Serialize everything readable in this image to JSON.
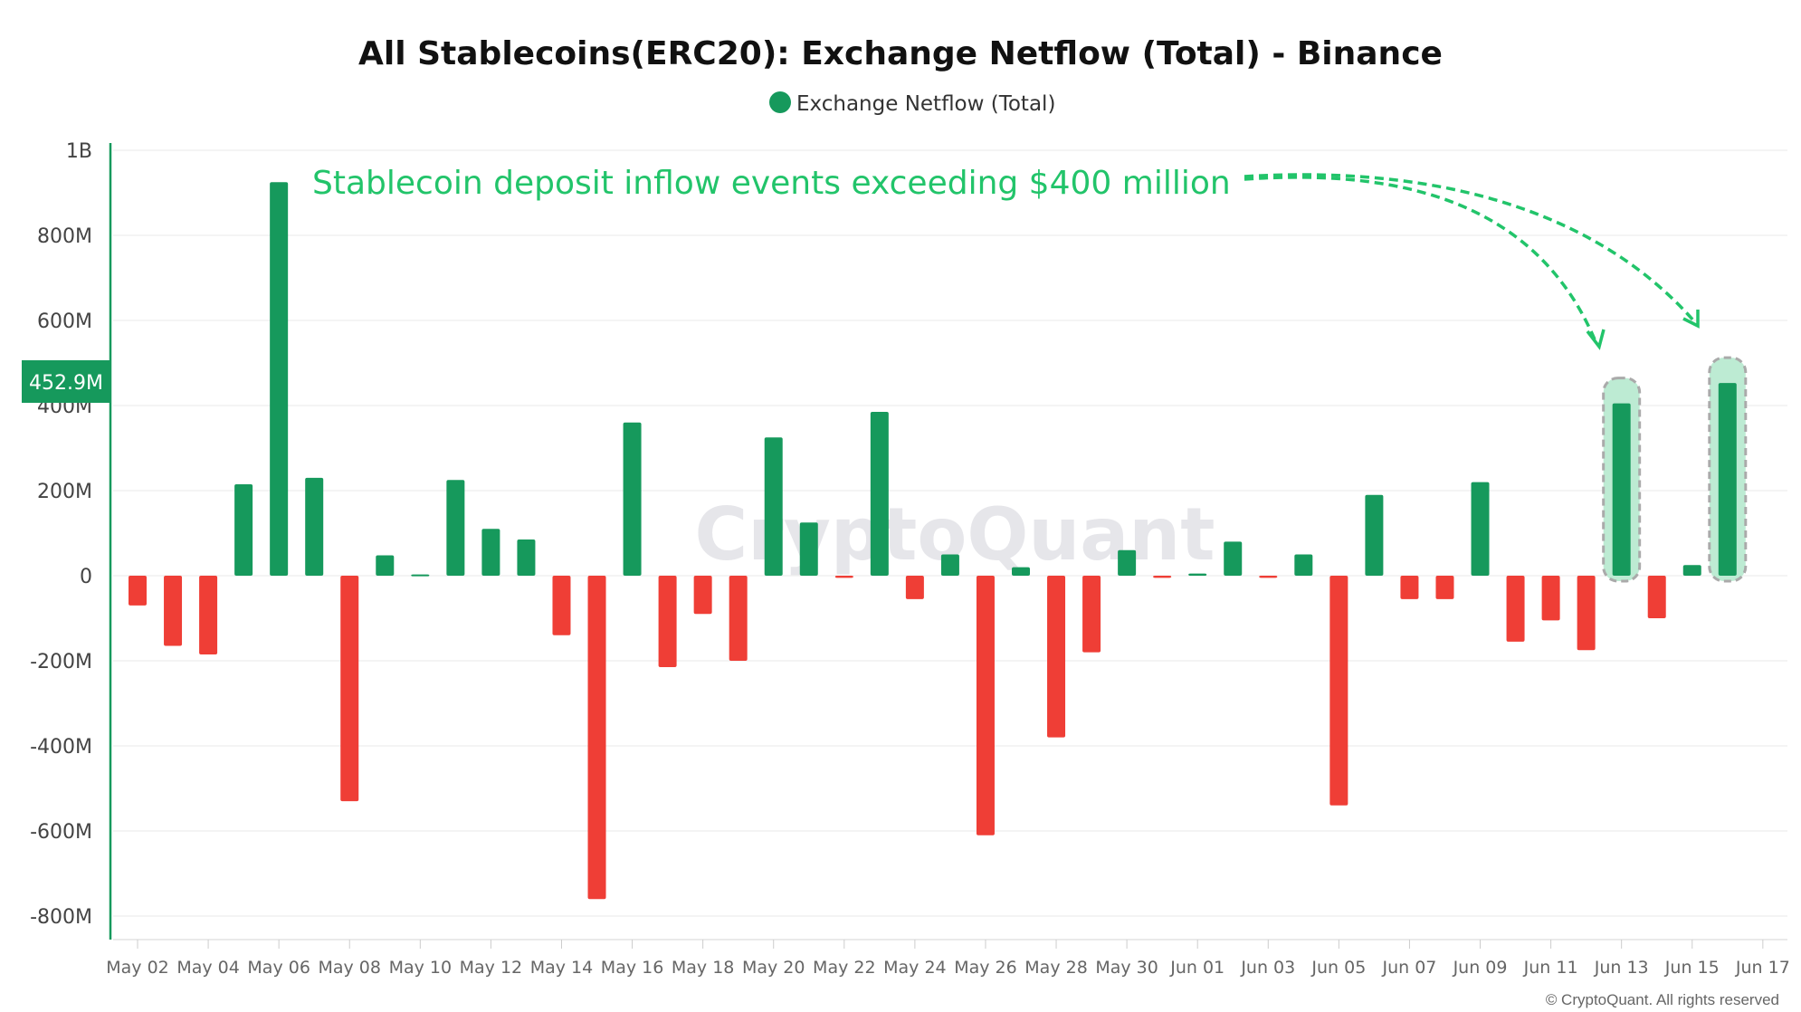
{
  "chart_data": {
    "type": "bar",
    "title": "All Stablecoins(ERC20): Exchange Netflow (Total) - Binance",
    "legend": [
      {
        "label": "Exchange Netflow (Total)",
        "color": "#16995c"
      }
    ],
    "legend_position": "top-center",
    "ylabel": "",
    "xlabel": "",
    "ylim": [
      -800,
      1000
    ],
    "y_unit": "M USD",
    "y_ticks": [
      {
        "v": 1000,
        "label": "1B"
      },
      {
        "v": 800,
        "label": "800M"
      },
      {
        "v": 600,
        "label": "600M"
      },
      {
        "v": 400,
        "label": "400M"
      },
      {
        "v": 200,
        "label": "200M"
      },
      {
        "v": 0,
        "label": "0"
      },
      {
        "v": -200,
        "label": "-200M"
      },
      {
        "v": -400,
        "label": "-400M"
      },
      {
        "v": -600,
        "label": "-600M"
      },
      {
        "v": -800,
        "label": "-800M"
      }
    ],
    "x_ticks": [
      "May 02",
      "May 04",
      "May 06",
      "May 08",
      "May 10",
      "May 12",
      "May 14",
      "May 16",
      "May 18",
      "May 20",
      "May 22",
      "May 24",
      "May 26",
      "May 28",
      "May 30",
      "Jun 01",
      "Jun 03",
      "Jun 05",
      "Jun 07",
      "Jun 09",
      "Jun 11",
      "Jun 13",
      "Jun 15",
      "Jun 17"
    ],
    "categories": [
      "May 02",
      "May 03",
      "May 04",
      "May 05",
      "May 06",
      "May 07",
      "May 08",
      "May 09",
      "May 10",
      "May 11",
      "May 12",
      "May 13",
      "May 14",
      "May 15",
      "May 16",
      "May 17",
      "May 18",
      "May 19",
      "May 20",
      "May 21",
      "May 22",
      "May 23",
      "May 24",
      "May 25",
      "May 26",
      "May 27",
      "May 28",
      "May 29",
      "May 30",
      "May 31",
      "Jun 01",
      "Jun 02",
      "Jun 03",
      "Jun 04",
      "Jun 05",
      "Jun 06",
      "Jun 07",
      "Jun 08",
      "Jun 09",
      "Jun 10",
      "Jun 11",
      "Jun 12",
      "Jun 13",
      "Jun 14",
      "Jun 15",
      "Jun 16"
    ],
    "values": [
      -70,
      -165,
      -185,
      215,
      925,
      230,
      -530,
      48,
      3,
      225,
      110,
      85,
      -140,
      -760,
      360,
      -215,
      -90,
      -200,
      325,
      125,
      -5,
      385,
      -55,
      50,
      -610,
      20,
      -380,
      -180,
      60,
      -5,
      5,
      80,
      -5,
      50,
      -540,
      190,
      -55,
      -55,
      220,
      -155,
      -105,
      -175,
      405,
      -100,
      25,
      452.9
    ],
    "highlighted": [
      "Jun 13",
      "Jun 16"
    ],
    "current_value_label": "452.9M",
    "annotation": "Stablecoin deposit inflow events exceeding $400 million",
    "watermark": "CryptoQuant",
    "copyright": "© CryptoQuant. All rights reserved",
    "colors": {
      "positive": "#16995c",
      "negative": "#ef3e36",
      "annotation": "#22c46a",
      "highlight": "#bdebd3"
    }
  }
}
